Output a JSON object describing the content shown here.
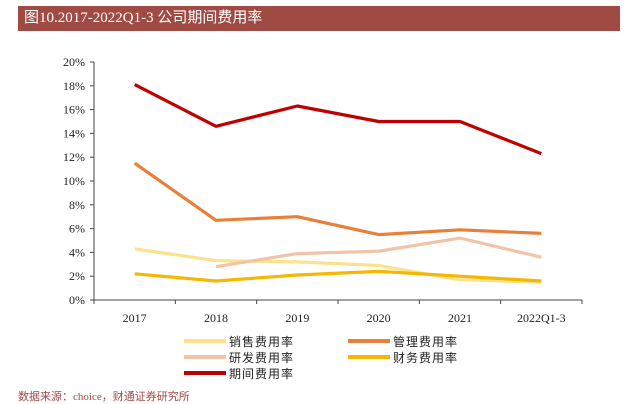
{
  "header": {
    "title": "图10.2017-2022Q1-3 公司期间费用率"
  },
  "footer": {
    "source": "数据来源：choice，财通证券研究所"
  },
  "chart_data": {
    "type": "line",
    "categories": [
      "2017",
      "2018",
      "2019",
      "2020",
      "2021",
      "2022Q1-3"
    ],
    "ylim": [
      0,
      20
    ],
    "yticks": [
      "0%",
      "2%",
      "4%",
      "6%",
      "8%",
      "10%",
      "12%",
      "14%",
      "16%",
      "18%",
      "20%"
    ],
    "grid": false,
    "legend_position": "bottom",
    "series": [
      {
        "name": "销售费用率",
        "color": "#fbe38e",
        "values": [
          4.3,
          3.3,
          3.2,
          2.9,
          1.7,
          1.5
        ]
      },
      {
        "name": "管理费用率",
        "color": "#e8803a",
        "values": [
          11.5,
          6.7,
          7.0,
          5.5,
          5.9,
          5.6
        ]
      },
      {
        "name": "研发费用率",
        "color": "#f2c3a6",
        "values": [
          null,
          2.8,
          3.9,
          4.1,
          5.2,
          3.6
        ]
      },
      {
        "name": "财务费用率",
        "color": "#f5b800",
        "values": [
          2.2,
          1.6,
          2.1,
          2.4,
          2.0,
          1.6
        ]
      },
      {
        "name": "期间费用率",
        "color": "#c00000",
        "values": [
          18.1,
          14.6,
          16.3,
          15.0,
          15.0,
          12.3
        ]
      }
    ]
  }
}
